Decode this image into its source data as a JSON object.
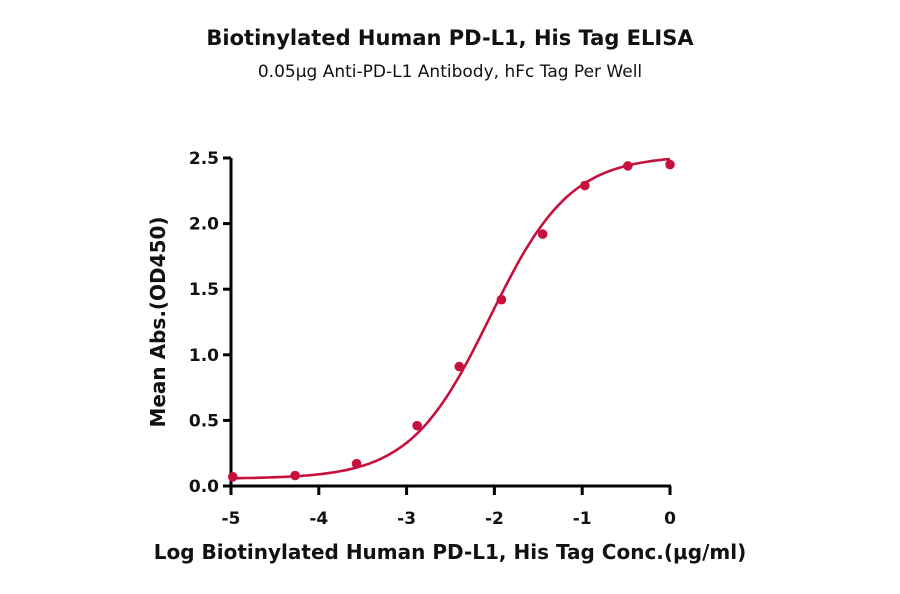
{
  "chart_data": {
    "type": "line",
    "title": "Biotinylated Human PD-L1, His Tag ELISA",
    "subtitle": "0.05μg Anti-PD-L1 Antibody, hFc Tag Per Well",
    "xlabel": "Log Biotinylated Human PD-L1, His Tag Conc.(μg/ml)",
    "ylabel": "Mean Abs.(OD450)",
    "xlim": [
      -5,
      0
    ],
    "ylim": [
      0,
      2.5
    ],
    "xticks": [
      "-5",
      "-4",
      "-3",
      "-2",
      "-1",
      "0"
    ],
    "yticks": [
      "0.0",
      "0.5",
      "1.0",
      "1.5",
      "2.0",
      "2.5"
    ],
    "grid": false,
    "legend": null,
    "series": [
      {
        "name": "Biotinylated Human PD-L1, His Tag",
        "color": "#c8103e",
        "fit": "4-parameter logistic curve",
        "x": [
          -4.98,
          -4.27,
          -3.57,
          -2.88,
          -2.4,
          -1.92,
          -1.45,
          -0.97,
          -0.48,
          0.0
        ],
        "y": [
          0.07,
          0.08,
          0.17,
          0.46,
          0.91,
          1.42,
          1.92,
          2.29,
          2.44,
          2.45
        ]
      }
    ]
  }
}
